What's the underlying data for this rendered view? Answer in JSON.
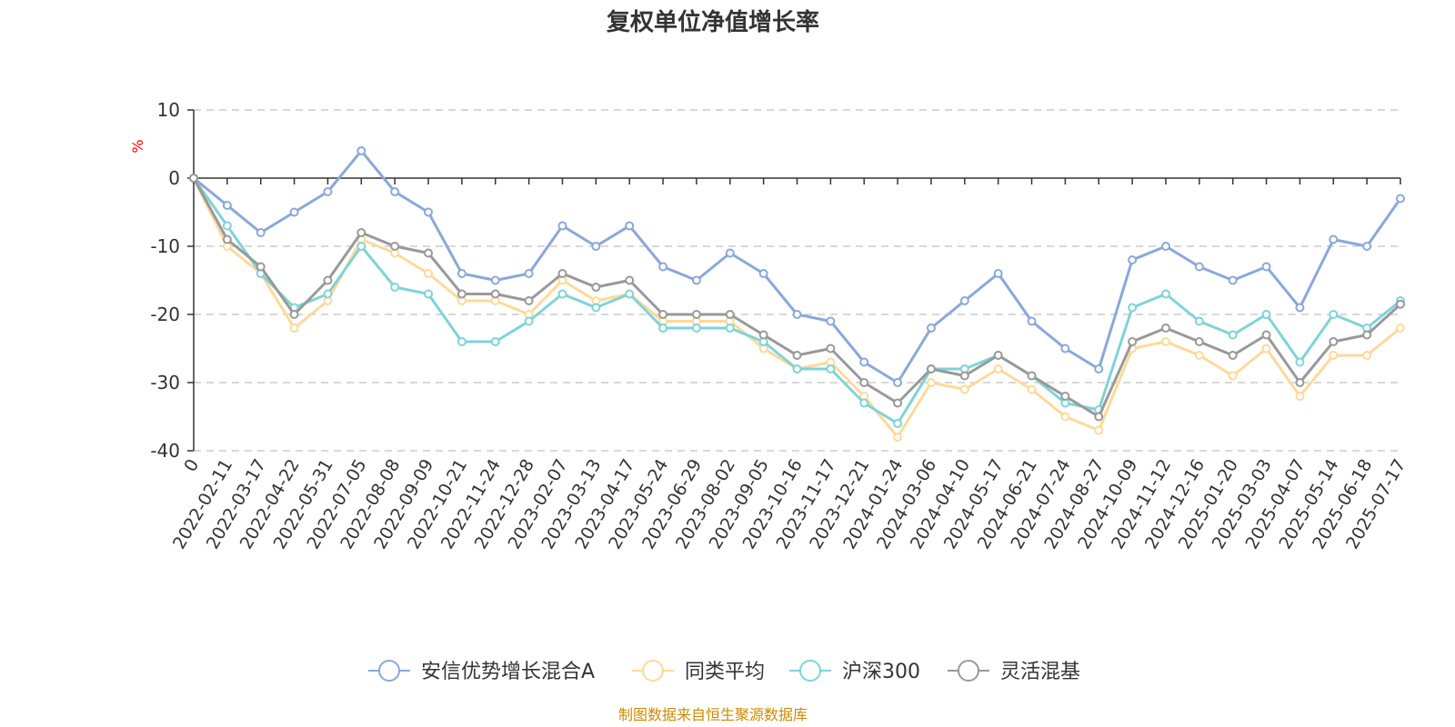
{
  "chart_data": {
    "type": "line",
    "title": "复权单位净值增长率",
    "ylabel": "%",
    "ylim": [
      -40,
      10
    ],
    "yticks": [
      10,
      0,
      -10,
      -20,
      -30,
      -40
    ],
    "xlabels": [
      "0",
      "2022-02-11",
      "2022-03-17",
      "2022-04-22",
      "2022-05-31",
      "2022-07-05",
      "2022-08-08",
      "2022-09-09",
      "2022-10-21",
      "2022-11-24",
      "2022-12-28",
      "2023-02-07",
      "2023-03-13",
      "2023-04-17",
      "2023-05-24",
      "2023-06-29",
      "2023-08-02",
      "2023-09-05",
      "2023-10-16",
      "2023-11-17",
      "2023-12-21",
      "2024-01-24",
      "2024-03-06",
      "2024-04-10",
      "2024-05-17",
      "2024-06-21",
      "2024-07-24",
      "2024-08-27",
      "2024-10-09",
      "2024-11-12",
      "2024-12-16",
      "2025-01-20",
      "2025-03-03",
      "2025-04-07",
      "2025-05-14",
      "2025-06-18",
      "2025-07-17"
    ],
    "grid": true,
    "legend_position": "bottom",
    "series": [
      {
        "name": "安信优势增长混合A",
        "color": "#8aa8d8",
        "x": [
          0,
          1,
          2,
          3,
          4,
          5,
          6,
          7,
          8,
          9,
          10,
          11,
          12,
          13,
          14,
          15,
          16,
          17,
          18,
          19,
          20,
          21,
          22,
          23,
          24,
          25,
          26,
          27,
          28,
          29,
          30,
          31,
          32,
          33,
          34,
          35,
          36
        ],
        "values": [
          0,
          -4,
          -8,
          -5,
          -2,
          4,
          -2,
          -5,
          -14,
          -15,
          -14,
          -7,
          -10,
          -7,
          -13,
          -15,
          -11,
          -14,
          -20,
          -21,
          -27,
          -30,
          -22,
          -18,
          -14,
          -21,
          -25,
          -28,
          -12,
          -10,
          -13,
          -15,
          -13,
          -19,
          -9,
          -10,
          -3
        ]
      },
      {
        "name": "同类平均",
        "color": "#ffd999",
        "x": [
          0,
          1,
          2,
          3,
          4,
          5,
          6,
          7,
          8,
          9,
          10,
          11,
          12,
          13,
          14,
          15,
          16,
          17,
          18,
          19,
          20,
          21,
          22,
          23,
          24,
          25,
          26,
          27,
          28,
          29,
          30,
          31,
          32,
          33,
          34,
          35,
          36
        ],
        "values": [
          0,
          -10,
          -14,
          -22,
          -18,
          -9,
          -11,
          -14,
          -18,
          -18,
          -20,
          -15,
          -18,
          -17,
          -21,
          -21,
          -21,
          -25,
          -28,
          -27,
          -32,
          -38,
          -30,
          -31,
          -28,
          -31,
          -35,
          -37,
          -25,
          -24,
          -26,
          -29,
          -25,
          -32,
          -26,
          -26,
          -22
        ]
      },
      {
        "name": "沪深300",
        "color": "#7fd3d9",
        "x": [
          0,
          1,
          2,
          3,
          4,
          5,
          6,
          7,
          8,
          9,
          10,
          11,
          12,
          13,
          14,
          15,
          16,
          17,
          18,
          19,
          20,
          21,
          22,
          23,
          24,
          25,
          26,
          27,
          28,
          29,
          30,
          31,
          32,
          33,
          34,
          35,
          36
        ],
        "values": [
          0,
          -7,
          -14,
          -19,
          -17,
          -10,
          -16,
          -17,
          -24,
          -24,
          -21,
          -17,
          -19,
          -17,
          -22,
          -22,
          -22,
          -24,
          -28,
          -28,
          -33,
          -36,
          -28,
          -28,
          -26,
          -29,
          -33,
          -34,
          -19,
          -17,
          -21,
          -23,
          -20,
          -27,
          -20,
          -22,
          -18
        ]
      },
      {
        "name": "灵活混基",
        "color": "#999999",
        "x": [
          0,
          1,
          2,
          3,
          4,
          5,
          6,
          7,
          8,
          9,
          10,
          11,
          12,
          13,
          14,
          15,
          16,
          17,
          18,
          19,
          20,
          21,
          22,
          23,
          24,
          25,
          26,
          27,
          28,
          29,
          30,
          31,
          32,
          33,
          34,
          35,
          36
        ],
        "values": [
          0,
          -9,
          -13,
          -20,
          -15,
          -8,
          -10,
          -11,
          -17,
          -17,
          -18,
          -14,
          -16,
          -15,
          -20,
          -20,
          -20,
          -23,
          -26,
          -25,
          -30,
          -33,
          -28,
          -29,
          -26,
          -29,
          -32,
          -35,
          -24,
          -22,
          -24,
          -26,
          -23,
          -30,
          -24,
          -23,
          -18.5
        ]
      }
    ]
  },
  "footer": {
    "source": "制图数据来自恒生聚源数据库"
  }
}
